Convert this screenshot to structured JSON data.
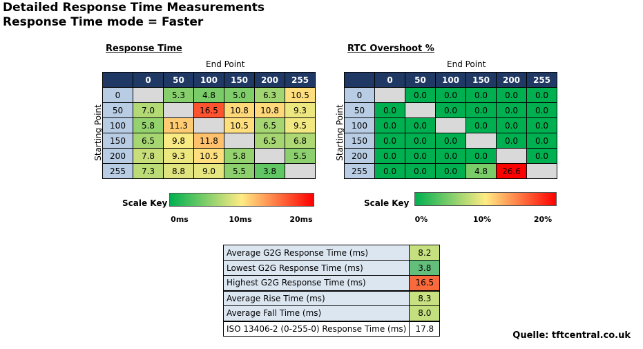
{
  "titles": {
    "line1": "Detailed Response Time Measurements",
    "line2": "Response Time mode = Faster"
  },
  "source": "Quelle: tftcentral.co.uk",
  "chart_data": [
    {
      "type": "heatmap",
      "title": "Response Time",
      "xlabel": "End Point",
      "ylabel": "Starting Point",
      "columns": [
        "0",
        "50",
        "100",
        "150",
        "200",
        "255"
      ],
      "rows": [
        "0",
        "50",
        "100",
        "150",
        "200",
        "255"
      ],
      "cells": [
        [
          null,
          "5.3",
          "4.8",
          "5.0",
          "6.3",
          "10.5"
        ],
        [
          "7.0",
          null,
          "16.5",
          "10.8",
          "10.8",
          "9.3"
        ],
        [
          "5.8",
          "11.3",
          null,
          "10.5",
          "6.5",
          "9.5"
        ],
        [
          "6.5",
          "9.8",
          "11.8",
          null,
          "6.5",
          "6.8"
        ],
        [
          "7.8",
          "9.3",
          "10.5",
          "5.8",
          null,
          "5.5"
        ],
        [
          "7.3",
          "8.8",
          "9.0",
          "5.5",
          "3.8",
          null
        ]
      ],
      "scale": {
        "label": "Scale Key",
        "min": 0,
        "max": 20,
        "ticks": [
          "0ms",
          "10ms",
          "20ms"
        ],
        "colors": [
          "#00b050",
          "#ffeb84",
          "#ff0000"
        ]
      }
    },
    {
      "type": "heatmap",
      "title": "RTC Overshoot %",
      "xlabel": "End Point",
      "ylabel": "Starting Point",
      "columns": [
        "0",
        "50",
        "100",
        "150",
        "200",
        "255"
      ],
      "rows": [
        "0",
        "50",
        "100",
        "150",
        "200",
        "255"
      ],
      "cells": [
        [
          null,
          "0.0",
          "0.0",
          "0.0",
          "0.0",
          "0.0"
        ],
        [
          "0.0",
          null,
          "0.0",
          "0.0",
          "0.0",
          "0.0"
        ],
        [
          "0.0",
          "0.0",
          null,
          "0.0",
          "0.0",
          "0.0"
        ],
        [
          "0.0",
          "0.0",
          "0.0",
          null,
          "0.0",
          "0.0"
        ],
        [
          "0.0",
          "0.0",
          "0.0",
          "0.0",
          null,
          "0.0"
        ],
        [
          "0.0",
          "0.0",
          "0.0",
          "4.8",
          "26.6",
          null
        ]
      ],
      "scale": {
        "label": "Scale Key",
        "min": 0,
        "max": 20,
        "ticks": [
          "0%",
          "10%",
          "20%"
        ],
        "colors": [
          "#00b050",
          "#ffeb84",
          "#ff0000"
        ]
      }
    },
    {
      "type": "table",
      "rows": [
        {
          "label": "Average G2G Response Time (ms)",
          "value": "8.2",
          "color": "#c6e07f"
        },
        {
          "label": "Lowest G2G Response Time (ms)",
          "value": "3.8",
          "color": "#63be7b"
        },
        {
          "label": "Highest G2G Response Time (ms)",
          "value": "16.5",
          "color": "#f8693b"
        },
        {
          "label": "Average Rise Time (ms)",
          "value": "8.3",
          "color": "#c8e07f"
        },
        {
          "label": "Average Fall Time (ms)",
          "value": "8.0",
          "color": "#c3df7e"
        },
        {
          "label": "ISO 13406-2  (0-255-0) Response Time (ms)",
          "value": "17.8",
          "color": "#ffffff"
        }
      ]
    }
  ]
}
